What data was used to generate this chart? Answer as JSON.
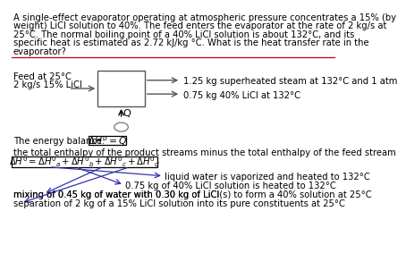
{
  "background_color": "#ffffff",
  "text_color": "#000000",
  "blue_color": "#3333aa",
  "paragraph_lines": [
    "A single-effect evaporator operating at atmospheric pressure concentrates a 15% (by",
    "weight) LiCl solution to 40%. The feed enters the evaporator at the rate of 2 kg/s at",
    "25°C. The normal boiling point of a 40% LiCl solution is about 132°C, and its",
    "specific heat is estimated as 2.72 kJ/kg °C. What is the heat transfer rate in the",
    "evaporator?"
  ],
  "feed_label_line1": "Feed at 25°C",
  "feed_label_line2": "2 kg/s 15% LiCl",
  "steam_label": "1.25 kg superheated steam at 132°C and 1 atm",
  "licl_label": "0.75 kg 40% LiCl at 132°C",
  "q_label": "Q",
  "energy_balance_prefix": "The energy balance: ",
  "total_enthalpy_text": "the total enthalpy of the product streams minus the total enthalpy of the feed stream",
  "line1_arrow": "liquid water is vaporized and heated to 132°C",
  "line2_arrow": "0.75 kg of 40% LiCl solution is heated to 132°C",
  "line3_arrow": "mixing of 0.45 kg of water with 0.30 kg of LiCl",
  "line3_sub": "(s)",
  "line3_suffix": " to form a 40% solution at 25°C",
  "line4_arrow": "separation of 2 kg of a 15% LiCl solution into its pure constituents at 25°C"
}
